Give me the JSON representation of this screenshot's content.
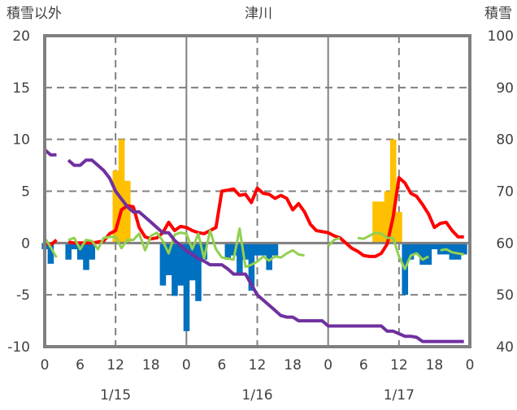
{
  "chart_data": {
    "type": "bar+line",
    "title": "津川",
    "left_axis_label": "積雪以外",
    "right_axis_label": "積雪",
    "ylim_left": [
      -10,
      20
    ],
    "yticks_left": [
      "20",
      "15",
      "10",
      "5",
      "0",
      "-5",
      "-10"
    ],
    "ylim_right": [
      40,
      100
    ],
    "yticks_right": [
      "100",
      "90",
      "80",
      "70",
      "60",
      "50",
      "40"
    ],
    "x_hours_range": [
      0,
      72
    ],
    "xtick_labels": [
      "0",
      "6",
      "12",
      "18",
      "0",
      "6",
      "12",
      "18",
      "0",
      "6",
      "12",
      "18",
      "0"
    ],
    "date_labels": [
      "1/15",
      "1/16",
      "1/17"
    ],
    "grid": "dashed horizontal every 5; dashed vertical at 12h; solid vertical at 0h",
    "colors": {
      "snowfall": "#FFC000",
      "decrease": "#0070C0",
      "temperature": "#FF0000",
      "green": "#92D050",
      "snow_depth": "#7030A0",
      "frame": "#808080"
    },
    "series": [
      {
        "name": "snowfall_bars",
        "axis": "left",
        "kind": "bar",
        "color": "#FFC000",
        "points": [
          [
            12,
            7
          ],
          [
            13,
            10
          ],
          [
            14,
            6
          ],
          [
            56,
            4
          ],
          [
            57,
            4
          ],
          [
            58,
            5
          ],
          [
            59,
            10
          ],
          [
            60,
            3
          ]
        ]
      },
      {
        "name": "negative_bars",
        "axis": "left",
        "kind": "bar",
        "color": "#0070C0",
        "points": [
          [
            0,
            -0.6
          ],
          [
            1,
            -2
          ],
          [
            4,
            -1.6
          ],
          [
            5,
            -0.6
          ],
          [
            6,
            -1.6
          ],
          [
            7,
            -2.6
          ],
          [
            8,
            -1.6
          ],
          [
            20,
            -4.1
          ],
          [
            21,
            -3.1
          ],
          [
            22,
            -5.1
          ],
          [
            23,
            -4.1
          ],
          [
            24,
            -8.5
          ],
          [
            25,
            -3.6
          ],
          [
            26,
            -5.6
          ],
          [
            27,
            -1.6
          ],
          [
            31,
            -1.6
          ],
          [
            32,
            -1.2
          ],
          [
            33,
            -2.9
          ],
          [
            34,
            -1.6
          ],
          [
            35,
            -4.6
          ],
          [
            36,
            -1.2
          ],
          [
            37,
            -1.2
          ],
          [
            38,
            -2.6
          ],
          [
            39,
            -1.2
          ],
          [
            61,
            -5
          ],
          [
            62,
            -1.6
          ],
          [
            63,
            -1.1
          ],
          [
            64,
            -2.1
          ],
          [
            65,
            -2.1
          ],
          [
            66,
            -0.6
          ],
          [
            67,
            -1.1
          ],
          [
            68,
            -1.1
          ],
          [
            69,
            -1.6
          ],
          [
            70,
            -1.6
          ],
          [
            71,
            -1.1
          ]
        ]
      },
      {
        "name": "red_line",
        "axis": "left",
        "kind": "line",
        "color": "#FF0000",
        "values": [
          0,
          -0.2,
          0.3,
          null,
          0.1,
          0,
          0,
          0,
          0,
          0.1,
          0.2,
          0.9,
          1.2,
          3.2,
          3.6,
          3.5,
          1.5,
          0.6,
          0.4,
          0.5,
          1.0,
          2.0,
          1.2,
          1.6,
          1.5,
          1.2,
          1.0,
          0.9,
          1.2,
          1.5,
          5.0,
          5.1,
          5.2,
          4.6,
          4.7,
          3.9,
          5.3,
          4.8,
          4.7,
          4.3,
          4.6,
          4.3,
          3.2,
          3.8,
          3.0,
          1.8,
          1.2,
          1.1,
          1.0,
          0.7,
          0.5,
          0.0,
          -0.5,
          -0.8,
          -1.2,
          -1.3,
          -1.3,
          -1.0,
          -0.1,
          2.5,
          6.3,
          5.8,
          4.8,
          4.5,
          3.7,
          2.8,
          1.5,
          1.9,
          2.0,
          1.2,
          0.6,
          0.6
        ]
      },
      {
        "name": "green_line",
        "axis": "left",
        "kind": "line",
        "color": "#92D050",
        "values": [
          0.5,
          -0.4,
          -1.4,
          null,
          0.3,
          0.5,
          -0.6,
          0.3,
          0.2,
          -0.6,
          0.5,
          0.6,
          0.6,
          -0.5,
          0.3,
          0.3,
          0.9,
          -0.7,
          0.7,
          1.0,
          0.2,
          -1.0,
          0.8,
          1.0,
          0.9,
          -0.6,
          0.9,
          -1.5,
          1.2,
          -0.6,
          -1.4,
          -1.5,
          -1.6,
          1.4,
          -2.3,
          -2.1,
          -1.8,
          -1.3,
          -1.7,
          -1.3,
          -1.4,
          -1.0,
          -0.7,
          -1.1,
          -1.2,
          null,
          null,
          null,
          -0.3,
          0.3,
          0.5,
          null,
          null,
          0.5,
          0.4,
          0.7,
          1.0,
          0.9,
          0.5,
          0.5,
          -1.3,
          -2.5,
          -1.2,
          -1.0,
          -1.6,
          -1.3,
          null,
          -0.7,
          -0.6,
          -0.9,
          -1.0,
          -1.1
        ]
      },
      {
        "name": "snow_depth",
        "axis": "right",
        "kind": "line",
        "color": "#7030A0",
        "values": [
          78,
          77,
          77,
          null,
          76,
          75,
          75,
          76,
          76,
          75,
          74,
          72.5,
          70,
          68.5,
          67,
          66,
          66,
          65,
          64,
          63,
          62,
          62,
          60.5,
          59.5,
          58.5,
          57.8,
          57,
          56.5,
          55.8,
          55.8,
          55.8,
          55,
          54,
          54,
          54,
          52,
          50,
          49,
          48,
          47,
          46,
          45.7,
          45.7,
          45,
          45,
          45,
          45,
          45,
          44,
          44,
          44,
          44,
          44,
          44,
          44,
          44,
          44,
          44,
          43,
          43,
          42.5,
          42,
          42,
          41.8,
          41,
          41,
          41,
          41,
          41,
          41,
          41,
          41
        ]
      }
    ]
  }
}
